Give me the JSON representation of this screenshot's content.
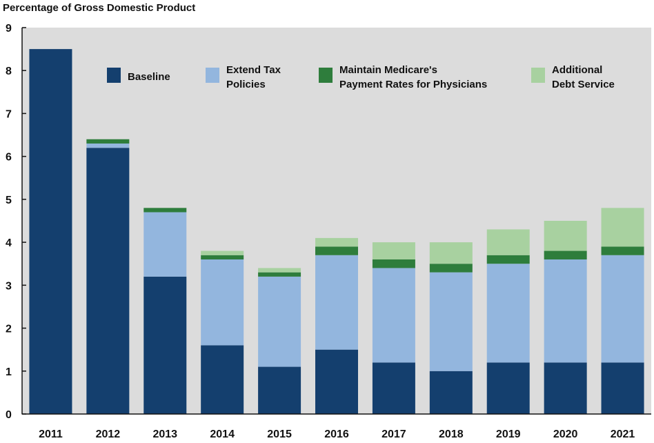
{
  "chart_data": {
    "type": "bar",
    "stacked": true,
    "ylabel": "Percentage of Gross Domestic Product",
    "ylim": [
      0,
      9
    ],
    "yticks": [
      "0",
      "1",
      "2",
      "3",
      "4",
      "5",
      "6",
      "7",
      "8",
      "9"
    ],
    "categories": [
      "2011",
      "2012",
      "2013",
      "2014",
      "2015",
      "2016",
      "2017",
      "2018",
      "2019",
      "2020",
      "2021"
    ],
    "series": [
      {
        "name": "Baseline",
        "color": "#143f6e",
        "values": [
          8.5,
          6.2,
          3.2,
          1.6,
          1.1,
          1.5,
          1.2,
          1.0,
          1.2,
          1.2,
          1.2
        ]
      },
      {
        "name": "Extend Tax Policies",
        "color": "#93b6de",
        "values": [
          0.0,
          0.1,
          1.5,
          2.0,
          2.1,
          2.2,
          2.2,
          2.3,
          2.3,
          2.4,
          2.5
        ]
      },
      {
        "name": "Maintain Medicare's Payment Rates for Physicians",
        "color": "#2e7d3c",
        "values": [
          0.0,
          0.1,
          0.1,
          0.1,
          0.1,
          0.2,
          0.2,
          0.2,
          0.2,
          0.2,
          0.2
        ]
      },
      {
        "name": "Additional Debt Service",
        "color": "#a8d1a0",
        "values": [
          0.0,
          0.0,
          0.0,
          0.1,
          0.1,
          0.2,
          0.4,
          0.5,
          0.6,
          0.7,
          0.9
        ]
      }
    ],
    "legend": {
      "placement": "top",
      "entries": [
        {
          "lines": [
            "Baseline"
          ]
        },
        {
          "lines": [
            "Extend Tax",
            "Policies"
          ]
        },
        {
          "lines": [
            "Maintain Medicare's",
            "Payment Rates for Physicians"
          ]
        },
        {
          "lines": [
            "Additional",
            "Debt Service"
          ]
        }
      ]
    },
    "plot_background": "#dcdcdc",
    "grid": false
  }
}
